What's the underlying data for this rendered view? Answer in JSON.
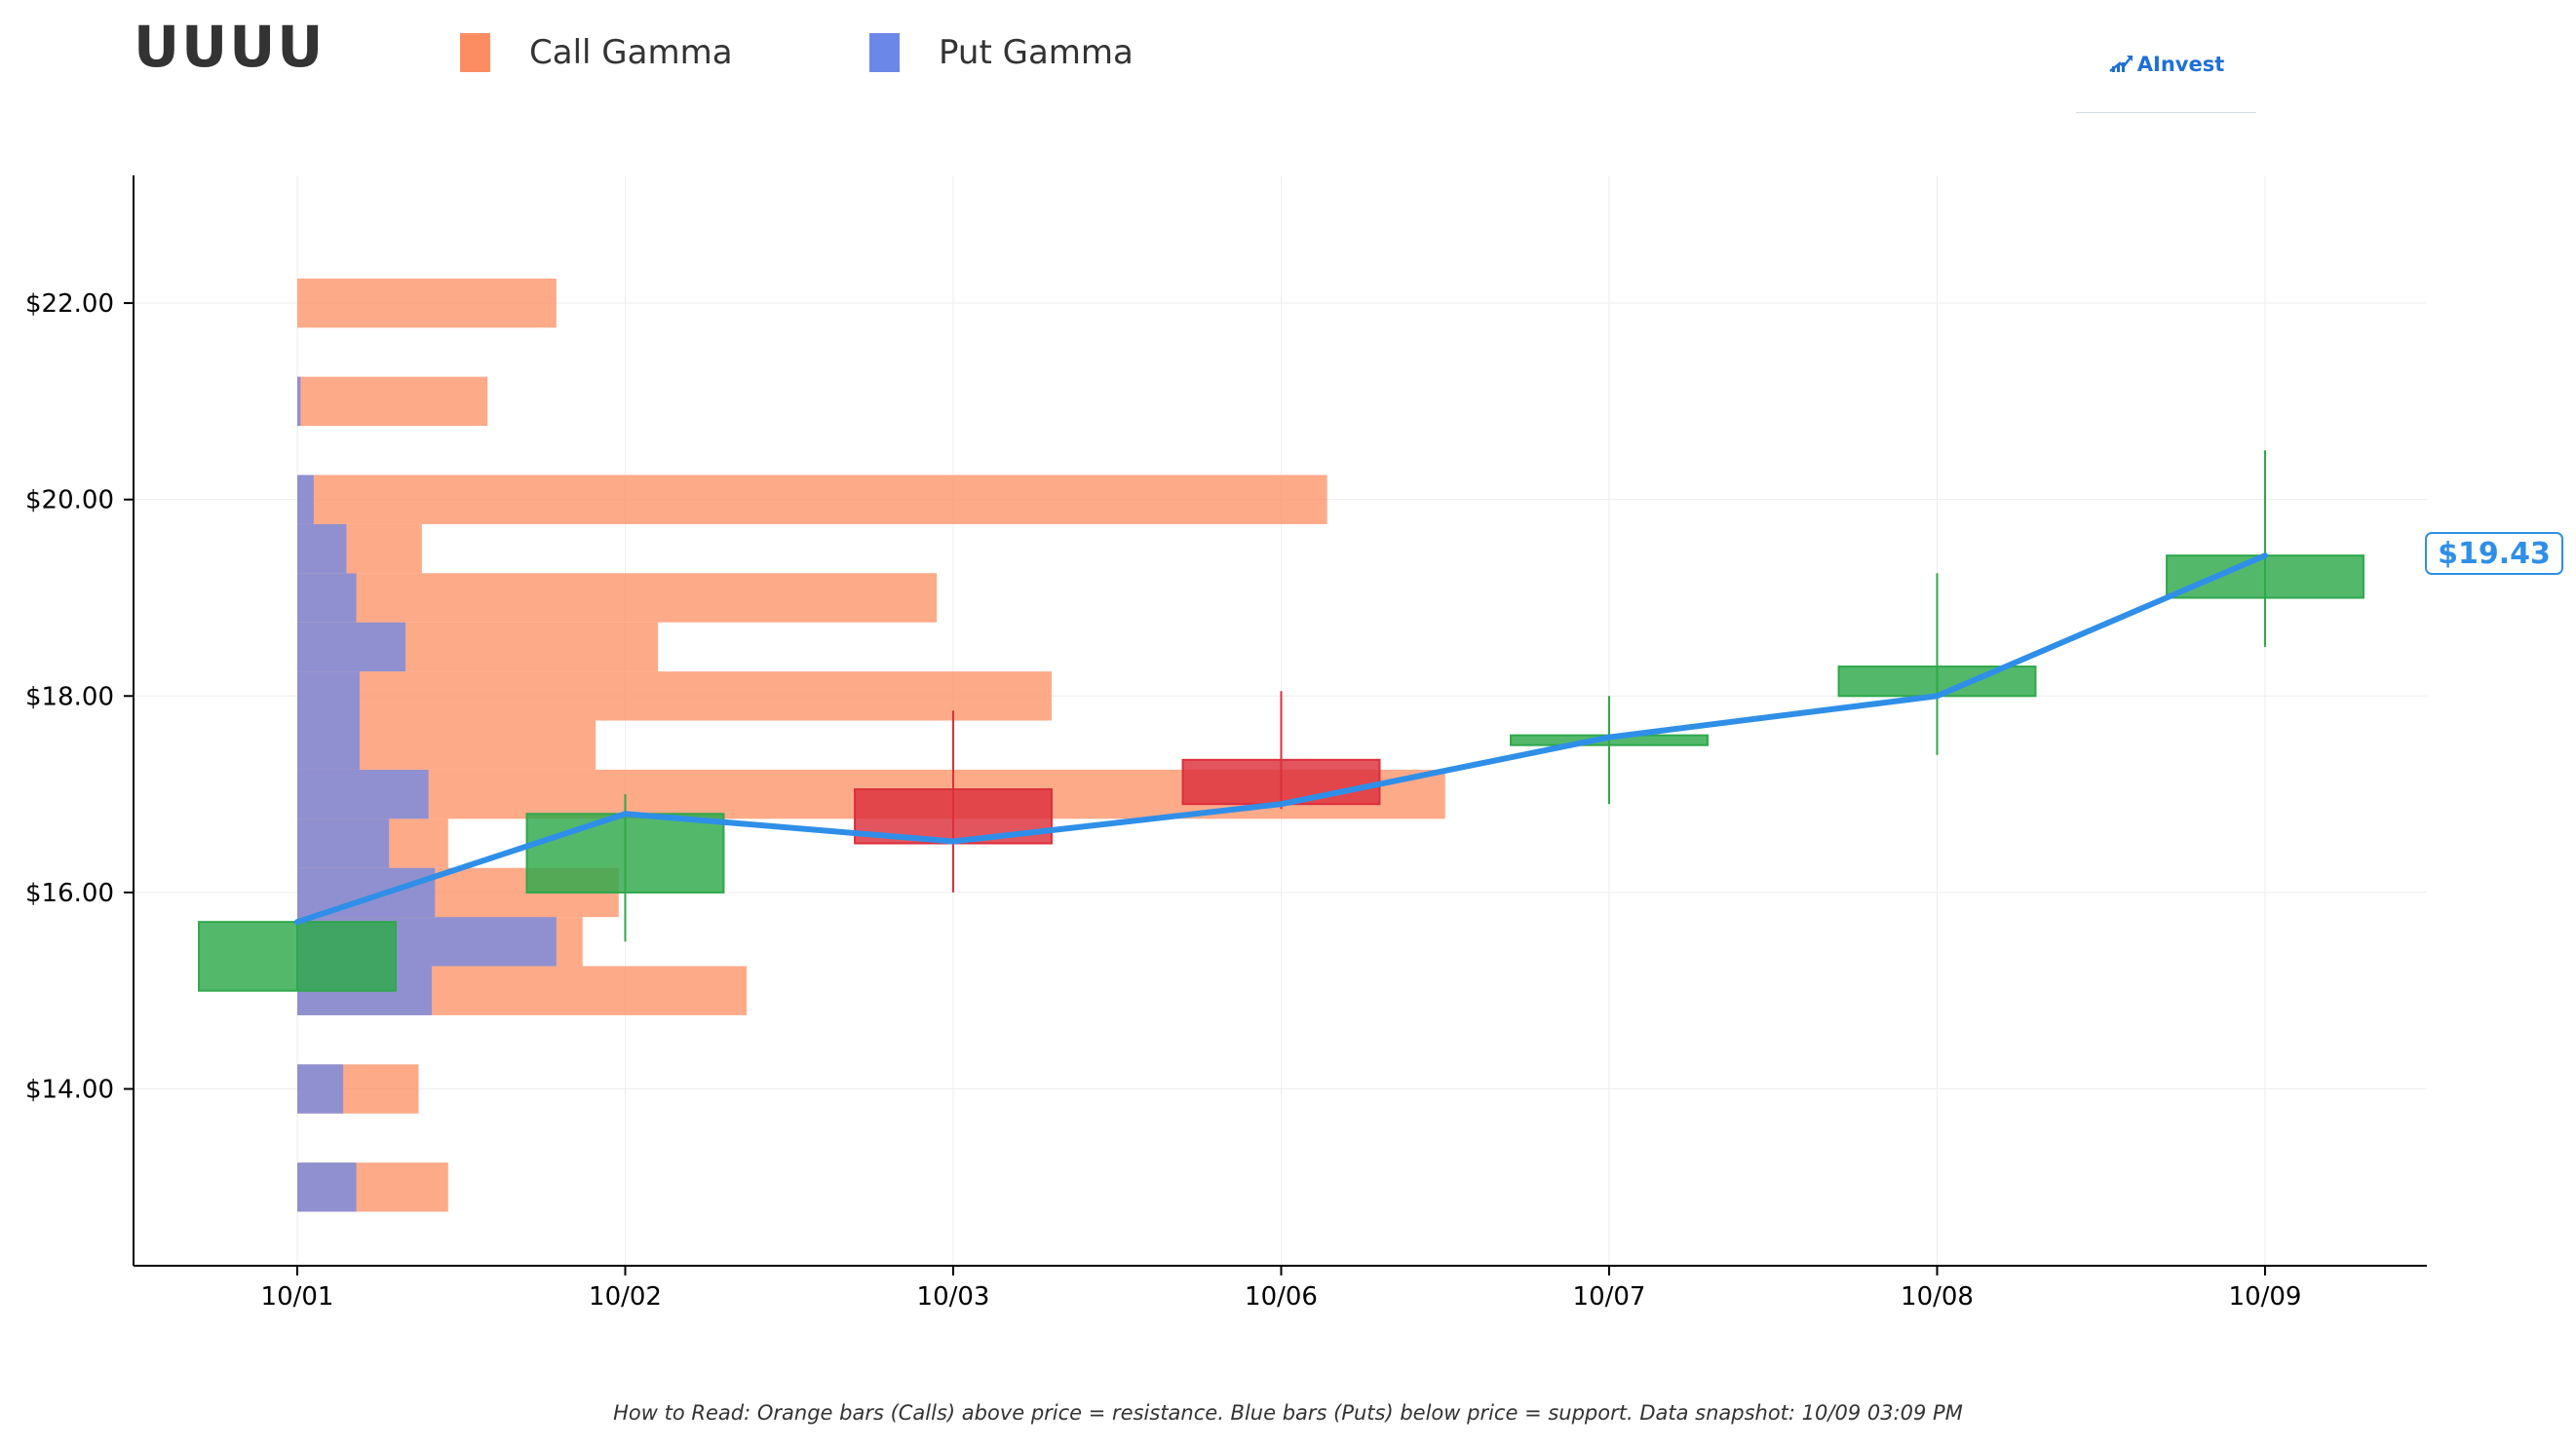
{
  "header": {
    "ticker": "UUUU",
    "legend": [
      {
        "label": "Call Gamma",
        "color": "#fc8d62"
      },
      {
        "label": "Put Gamma",
        "color": "#6b87e8"
      }
    ],
    "brand": "AInvest"
  },
  "footnote": "How to Read: Orange bars (Calls) above price = resistance. Blue bars (Puts) below price = support. Data snapshot: 10/09 03:09 PM",
  "price_label": "$19.43",
  "colors": {
    "call": "#fc8d62",
    "put": "#6b87e8",
    "up": "#2ea84a",
    "down": "#dc2f3c",
    "price_line": "#2f8fe8"
  },
  "chart_data": {
    "type": "candlestick_with_gamma_profile",
    "x_categories": [
      "10/01",
      "10/02",
      "10/03",
      "10/06",
      "10/07",
      "10/08",
      "10/09"
    ],
    "ylim": [
      12.2,
      23.3
    ],
    "yticks": [
      14,
      16,
      18,
      20,
      22
    ],
    "ytick_labels": [
      "$14.00",
      "$16.00",
      "$18.00",
      "$20.00",
      "$22.00"
    ],
    "xlim": [
      -0.5,
      6.5
    ],
    "grid": true,
    "legend_position": "top-left",
    "candles": [
      {
        "date": "10/01",
        "open": 15.0,
        "close": 15.7,
        "high": 15.7,
        "low": 15.0
      },
      {
        "date": "10/02",
        "open": 16.0,
        "close": 16.8,
        "high": 17.0,
        "low": 15.5
      },
      {
        "date": "10/03",
        "open": 17.05,
        "close": 16.5,
        "high": 17.85,
        "low": 16.0
      },
      {
        "date": "10/06",
        "open": 17.35,
        "close": 16.9,
        "high": 18.05,
        "low": 16.85
      },
      {
        "date": "10/07",
        "open": 17.5,
        "close": 17.6,
        "high": 18.0,
        "low": 16.9
      },
      {
        "date": "10/08",
        "open": 18.0,
        "close": 18.3,
        "high": 19.25,
        "low": 17.4
      },
      {
        "date": "10/09",
        "open": 19.0,
        "close": 19.43,
        "high": 20.5,
        "low": 18.5
      }
    ],
    "price_line": {
      "x": [
        "10/01",
        "10/02",
        "10/03",
        "10/06",
        "10/07",
        "10/08",
        "10/09"
      ],
      "y": [
        15.7,
        16.8,
        16.52,
        16.9,
        17.58,
        18.0,
        19.43
      ]
    },
    "gamma_profile": {
      "unit": "relative extent in x-axis units from 10/01",
      "strikes": [
        13.0,
        14.0,
        15.0,
        15.5,
        16.0,
        16.5,
        17.0,
        17.5,
        18.0,
        18.5,
        19.0,
        19.5,
        20.0,
        21.0,
        22.0
      ],
      "call": [
        0.46,
        0.37,
        1.37,
        0.87,
        0.98,
        0.46,
        3.5,
        0.91,
        2.3,
        1.1,
        1.95,
        0.38,
        3.14,
        0.58,
        0.79
      ],
      "put": [
        0.18,
        0.14,
        0.41,
        0.79,
        0.42,
        0.28,
        0.4,
        0.19,
        0.19,
        0.33,
        0.18,
        0.15,
        0.05,
        0.01,
        0.0
      ]
    }
  }
}
